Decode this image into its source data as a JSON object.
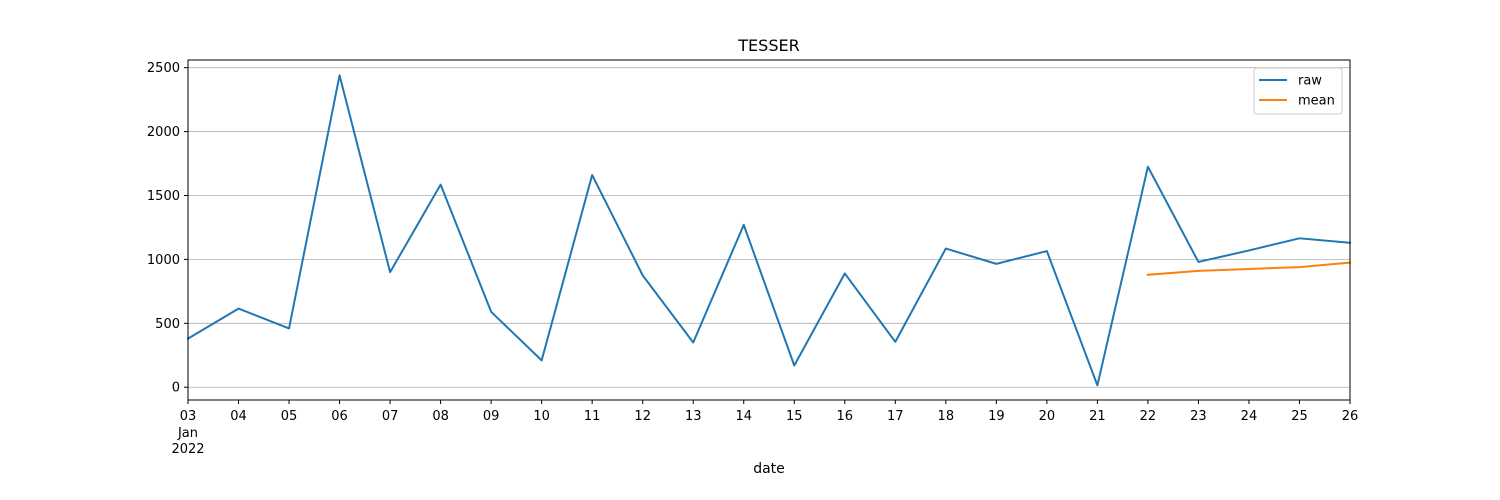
{
  "chart_data": {
    "type": "line",
    "title": "TESSER",
    "xlabel": "date",
    "ylabel": "",
    "x": [
      "03",
      "04",
      "05",
      "06",
      "07",
      "08",
      "09",
      "10",
      "11",
      "12",
      "13",
      "14",
      "15",
      "16",
      "17",
      "18",
      "19",
      "20",
      "21",
      "22",
      "23",
      "24",
      "25",
      "26"
    ],
    "x_month_label": "Jan",
    "x_year_label": "2022",
    "xlim": [
      0,
      23
    ],
    "ylim": [
      -100,
      2560
    ],
    "yticks": [
      0,
      500,
      1000,
      1500,
      2000,
      2500
    ],
    "grid": "y-only",
    "legend": "top-right",
    "series": [
      {
        "name": "raw",
        "color": "#1f77b4",
        "values": [
          380,
          615,
          460,
          2440,
          900,
          1585,
          590,
          210,
          1660,
          875,
          350,
          1270,
          170,
          890,
          355,
          1085,
          965,
          1065,
          15,
          1725,
          980,
          1070,
          1165,
          1130
        ]
      },
      {
        "name": "mean",
        "color": "#ff7f0e",
        "values": [
          null,
          null,
          null,
          null,
          null,
          null,
          null,
          null,
          null,
          null,
          null,
          null,
          null,
          null,
          null,
          null,
          null,
          null,
          null,
          880,
          910,
          925,
          940,
          975
        ]
      }
    ]
  }
}
